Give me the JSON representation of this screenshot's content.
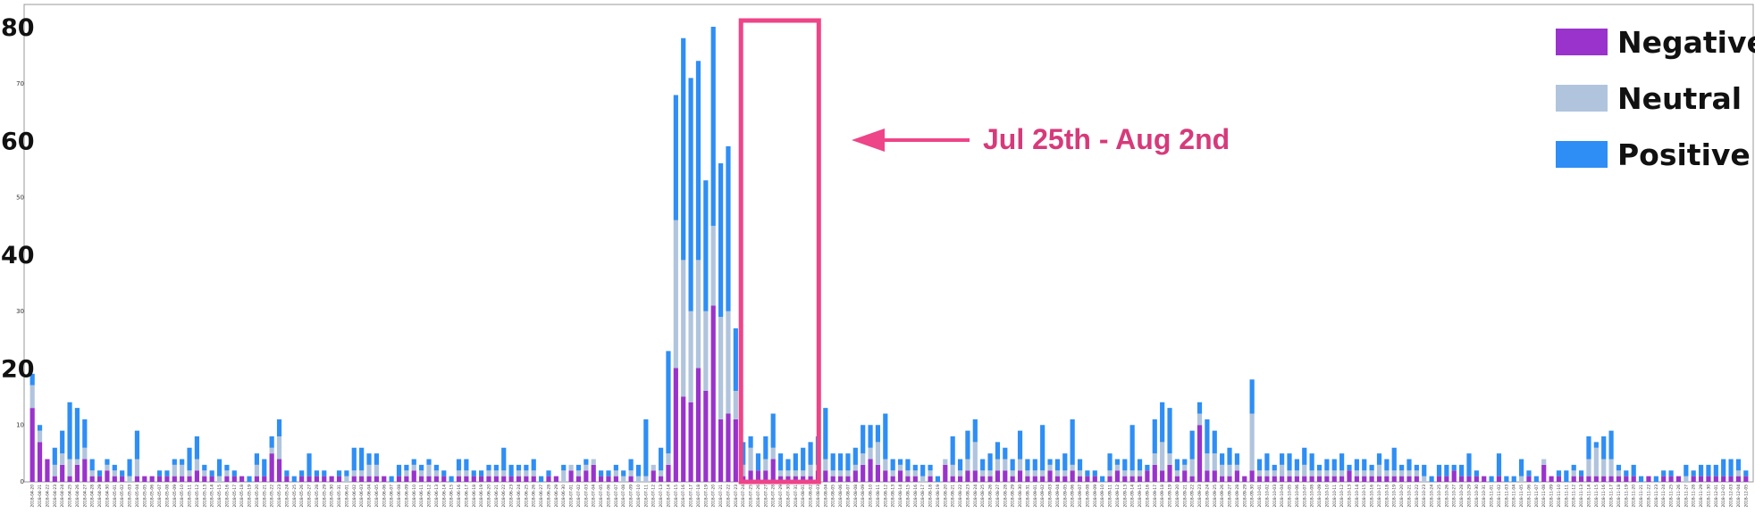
{
  "chart_data": {
    "type": "bar",
    "stacked": true,
    "xlabel": "",
    "ylabel": "",
    "ylim": [
      0,
      80
    ],
    "legend_position": "top-right",
    "grid": false,
    "y_ticks_major": [
      {
        "value": 80,
        "label": "80"
      },
      {
        "value": 60,
        "label": "60"
      },
      {
        "value": 40,
        "label": "40"
      },
      {
        "value": 20,
        "label": "20"
      }
    ],
    "y_ticks_minor": [
      {
        "value": 70,
        "label": "70"
      },
      {
        "value": 50,
        "label": "50"
      },
      {
        "value": 30,
        "label": "30"
      },
      {
        "value": 10,
        "label": "10"
      },
      {
        "value": 0,
        "label": "0"
      }
    ],
    "x_tick_note": "one small rotated date label per day (2018-04-20 … 2018-12-11)",
    "date_range": [
      "2018-04-20",
      "2018-12-11"
    ],
    "series": [
      {
        "name": "Negative",
        "color": "#9933cc"
      },
      {
        "name": "Neutral",
        "color": "#b0c4de"
      },
      {
        "name": "Positive",
        "color": "#2e8ef5"
      }
    ],
    "highlight": {
      "start": "2018-07-25",
      "end": "2018-08-02",
      "color": "#ee4488"
    },
    "annotation": {
      "text": "Jul 25th -  Aug 2nd",
      "color": "#d63a7a"
    },
    "values": [
      [
        13,
        4,
        2
      ],
      [
        7,
        2,
        1
      ],
      [
        4,
        0,
        0
      ],
      [
        1,
        2,
        3
      ],
      [
        3,
        2,
        4
      ],
      [
        1,
        3,
        10
      ],
      [
        3,
        1,
        9
      ],
      [
        4,
        2,
        5
      ],
      [
        1,
        1,
        2
      ],
      [
        1,
        0,
        1
      ],
      [
        2,
        1,
        1
      ],
      [
        1,
        1,
        1
      ],
      [
        1,
        0,
        1
      ],
      [
        0,
        1,
        3
      ],
      [
        1,
        3,
        5
      ],
      [
        1,
        0,
        0
      ],
      [
        1,
        0,
        0
      ],
      [
        1,
        0,
        1
      ],
      [
        1,
        0,
        1
      ],
      [
        1,
        2,
        1
      ],
      [
        1,
        2,
        1
      ],
      [
        1,
        1,
        4
      ],
      [
        2,
        2,
        4
      ],
      [
        1,
        1,
        1
      ],
      [
        1,
        0,
        1
      ],
      [
        0,
        1,
        3
      ],
      [
        1,
        1,
        1
      ],
      [
        1,
        0,
        1
      ],
      [
        1,
        0,
        0
      ],
      [
        0,
        0,
        1
      ],
      [
        1,
        2,
        2
      ],
      [
        1,
        0,
        3
      ],
      [
        5,
        1,
        2
      ],
      [
        4,
        4,
        3
      ],
      [
        1,
        0,
        1
      ],
      [
        0,
        0,
        1
      ],
      [
        1,
        0,
        1
      ],
      [
        1,
        0,
        4
      ],
      [
        1,
        0,
        1
      ],
      [
        1,
        0,
        1
      ],
      [
        1,
        0,
        0
      ],
      [
        1,
        0,
        1
      ],
      [
        0,
        1,
        1
      ],
      [
        1,
        1,
        4
      ],
      [
        1,
        1,
        4
      ],
      [
        1,
        2,
        2
      ],
      [
        1,
        2,
        2
      ],
      [
        1,
        0,
        0
      ],
      [
        0,
        0,
        1
      ],
      [
        1,
        0,
        2
      ],
      [
        1,
        1,
        1
      ],
      [
        2,
        1,
        1
      ],
      [
        1,
        1,
        1
      ],
      [
        1,
        2,
        1
      ],
      [
        1,
        1,
        1
      ],
      [
        1,
        0,
        1
      ],
      [
        0,
        0,
        1
      ],
      [
        1,
        1,
        2
      ],
      [
        1,
        1,
        2
      ],
      [
        1,
        0,
        1
      ],
      [
        1,
        0,
        1
      ],
      [
        1,
        1,
        1
      ],
      [
        1,
        1,
        1
      ],
      [
        1,
        1,
        4
      ],
      [
        1,
        0,
        2
      ],
      [
        1,
        1,
        1
      ],
      [
        1,
        1,
        1
      ],
      [
        1,
        1,
        2
      ],
      [
        0,
        0,
        1
      ],
      [
        1,
        0,
        1
      ],
      [
        1,
        0,
        0
      ],
      [
        0,
        2,
        1
      ],
      [
        2,
        1,
        0
      ],
      [
        1,
        1,
        1
      ],
      [
        2,
        1,
        1
      ],
      [
        3,
        1,
        0
      ],
      [
        1,
        0,
        1
      ],
      [
        1,
        0,
        1
      ],
      [
        1,
        1,
        1
      ],
      [
        0,
        1,
        1
      ],
      [
        1,
        1,
        2
      ],
      [
        0,
        1,
        2
      ],
      [
        0,
        1,
        10
      ],
      [
        2,
        1,
        0
      ],
      [
        1,
        1,
        4
      ],
      [
        3,
        2,
        18
      ],
      [
        20,
        26,
        22
      ],
      [
        15,
        24,
        39
      ],
      [
        14,
        16,
        41
      ],
      [
        20,
        19,
        35
      ],
      [
        16,
        14,
        23
      ],
      [
        31,
        14,
        35
      ],
      [
        11,
        18,
        27
      ],
      [
        12,
        18,
        29
      ],
      [
        11,
        5,
        11
      ],
      [
        1,
        2,
        4
      ],
      [
        2,
        4,
        2
      ],
      [
        2,
        0,
        3
      ],
      [
        2,
        2,
        4
      ],
      [
        4,
        2,
        6
      ],
      [
        1,
        1,
        3
      ],
      [
        1,
        1,
        2
      ],
      [
        1,
        1,
        3
      ],
      [
        1,
        1,
        4
      ],
      [
        1,
        2,
        4
      ],
      [
        2,
        1,
        5
      ],
      [
        2,
        2,
        9
      ],
      [
        1,
        1,
        3
      ],
      [
        1,
        1,
        3
      ],
      [
        1,
        1,
        3
      ],
      [
        2,
        1,
        3
      ],
      [
        3,
        2,
        5
      ],
      [
        4,
        2,
        4
      ],
      [
        3,
        4,
        3
      ],
      [
        2,
        2,
        8
      ],
      [
        1,
        1,
        2
      ],
      [
        2,
        1,
        1
      ],
      [
        1,
        1,
        2
      ],
      [
        1,
        1,
        1
      ],
      [
        0,
        1,
        2
      ],
      [
        1,
        1,
        1
      ],
      [
        0,
        0,
        1
      ],
      [
        3,
        1,
        0
      ],
      [
        1,
        2,
        5
      ],
      [
        1,
        1,
        2
      ],
      [
        2,
        2,
        5
      ],
      [
        2,
        5,
        4
      ],
      [
        1,
        1,
        2
      ],
      [
        1,
        1,
        3
      ],
      [
        2,
        2,
        3
      ],
      [
        2,
        2,
        2
      ],
      [
        1,
        1,
        2
      ],
      [
        2,
        2,
        5
      ],
      [
        1,
        1,
        2
      ],
      [
        1,
        1,
        2
      ],
      [
        1,
        1,
        8
      ],
      [
        2,
        1,
        1
      ],
      [
        1,
        1,
        2
      ],
      [
        1,
        1,
        3
      ],
      [
        2,
        1,
        8
      ],
      [
        1,
        1,
        2
      ],
      [
        1,
        0,
        1
      ],
      [
        1,
        0,
        1
      ],
      [
        0,
        0,
        1
      ],
      [
        1,
        1,
        3
      ],
      [
        2,
        1,
        1
      ],
      [
        1,
        1,
        2
      ],
      [
        1,
        1,
        8
      ],
      [
        1,
        1,
        2
      ],
      [
        2,
        0,
        1
      ],
      [
        3,
        2,
        6
      ],
      [
        2,
        5,
        7
      ],
      [
        3,
        2,
        8
      ],
      [
        1,
        1,
        2
      ],
      [
        2,
        1,
        1
      ],
      [
        1,
        3,
        5
      ],
      [
        10,
        2,
        2
      ],
      [
        2,
        3,
        6
      ],
      [
        2,
        3,
        4
      ],
      [
        1,
        2,
        2
      ],
      [
        1,
        2,
        3
      ],
      [
        2,
        1,
        2
      ],
      [
        1,
        0,
        0
      ],
      [
        2,
        10,
        6
      ],
      [
        1,
        1,
        2
      ],
      [
        1,
        1,
        3
      ],
      [
        1,
        1,
        1
      ],
      [
        1,
        2,
        2
      ],
      [
        1,
        1,
        3
      ],
      [
        1,
        1,
        2
      ],
      [
        1,
        2,
        3
      ],
      [
        1,
        1,
        3
      ],
      [
        1,
        1,
        1
      ],
      [
        1,
        1,
        2
      ],
      [
        1,
        1,
        2
      ],
      [
        1,
        1,
        3
      ],
      [
        2,
        0,
        1
      ],
      [
        1,
        1,
        2
      ],
      [
        1,
        1,
        2
      ],
      [
        1,
        1,
        1
      ],
      [
        1,
        2,
        2
      ],
      [
        1,
        1,
        2
      ],
      [
        1,
        1,
        4
      ],
      [
        1,
        1,
        1
      ],
      [
        1,
        1,
        2
      ],
      [
        1,
        1,
        1
      ],
      [
        0,
        1,
        2
      ],
      [
        0,
        0,
        1
      ],
      [
        1,
        0,
        2
      ],
      [
        1,
        0,
        2
      ],
      [
        2,
        0,
        1
      ],
      [
        1,
        0,
        2
      ],
      [
        1,
        0,
        4
      ],
      [
        1,
        0,
        1
      ],
      [
        1,
        0,
        0
      ],
      [
        0,
        0,
        1
      ],
      [
        1,
        0,
        4
      ],
      [
        0,
        0,
        1
      ],
      [
        0,
        0,
        1
      ],
      [
        0,
        1,
        3
      ],
      [
        1,
        0,
        1
      ],
      [
        0,
        0,
        1
      ],
      [
        3,
        1,
        0
      ],
      [
        1,
        0,
        0
      ],
      [
        1,
        0,
        1
      ],
      [
        0,
        0,
        2
      ],
      [
        1,
        1,
        1
      ],
      [
        1,
        0,
        1
      ],
      [
        1,
        3,
        4
      ],
      [
        1,
        5,
        1
      ],
      [
        1,
        3,
        4
      ],
      [
        1,
        3,
        5
      ],
      [
        1,
        1,
        1
      ],
      [
        1,
        0,
        1
      ],
      [
        1,
        0,
        2
      ],
      [
        0,
        0,
        1
      ],
      [
        1,
        0,
        0
      ],
      [
        0,
        0,
        1
      ],
      [
        1,
        0,
        1
      ],
      [
        1,
        0,
        1
      ],
      [
        1,
        0,
        0
      ],
      [
        0,
        1,
        2
      ],
      [
        1,
        0,
        1
      ],
      [
        1,
        0,
        2
      ],
      [
        1,
        0,
        2
      ],
      [
        1,
        0,
        2
      ],
      [
        1,
        0,
        3
      ],
      [
        1,
        0,
        3
      ],
      [
        1,
        1,
        2
      ],
      [
        1,
        0,
        1
      ]
    ]
  }
}
